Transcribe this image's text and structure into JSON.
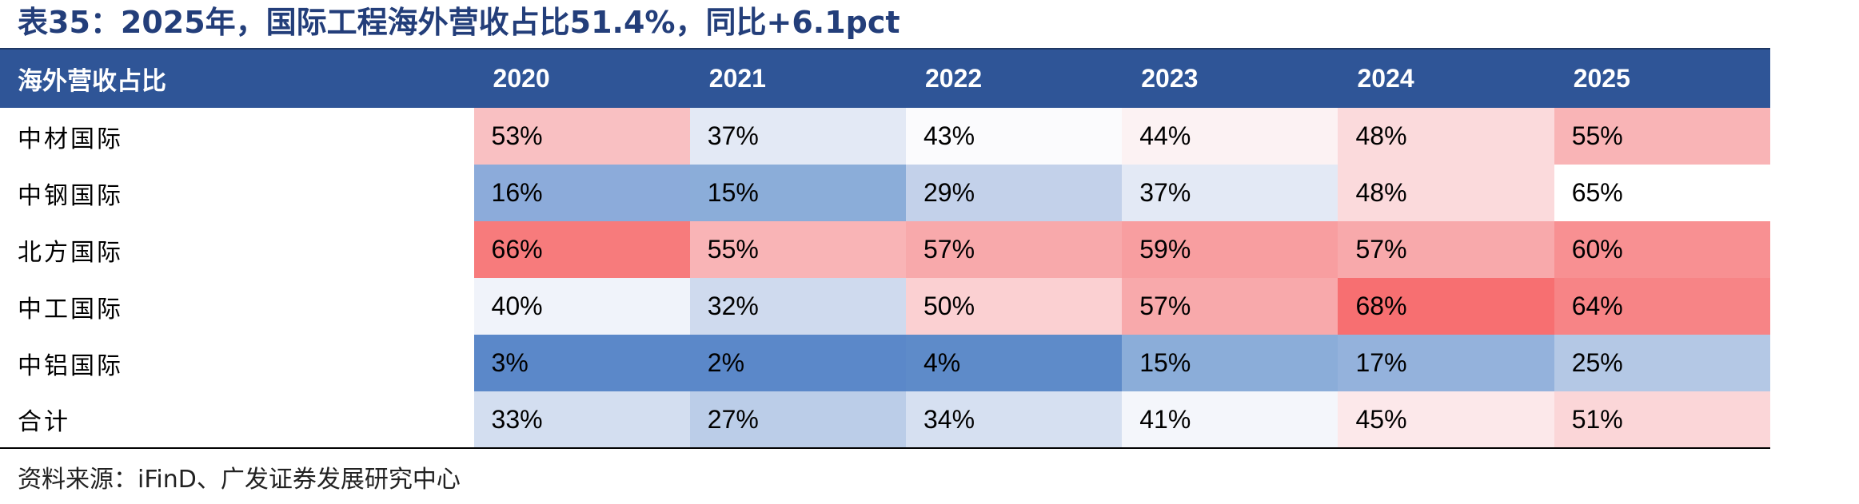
{
  "title": "表35：2025年，国际工程海外营收占比51.4%，同比+6.1pct",
  "table": {
    "header_label": "海外营收占比",
    "years": [
      "2020",
      "2021",
      "2022",
      "2023",
      "2024",
      "2025"
    ],
    "rows": [
      {
        "name": "中材国际",
        "values": [
          "53%",
          "37%",
          "43%",
          "44%",
          "48%",
          "55%"
        ],
        "colors": [
          "#f9c0c2",
          "#e3e9f5",
          "#fbfbfd",
          "#fcf2f3",
          "#fbdadc",
          "#f9b4b6"
        ]
      },
      {
        "name": "中钢国际",
        "values": [
          "16%",
          "15%",
          "29%",
          "37%",
          "48%",
          "65%"
        ],
        "colors": [
          "#8cabda",
          "#8badd9",
          "#c3d1ea",
          "#e3e9f5",
          "#fbdadc",
          "#ffffff"
        ]
      },
      {
        "name": "北方国际",
        "values": [
          "66%",
          "55%",
          "57%",
          "59%",
          "57%",
          "60%"
        ],
        "colors": [
          "#f77b7c",
          "#f9b4b6",
          "#f8a9ab",
          "#f89ea0",
          "#f8a9ab",
          "#f89092"
        ]
      },
      {
        "name": "中工国际",
        "values": [
          "40%",
          "32%",
          "50%",
          "57%",
          "68%",
          "64%"
        ],
        "colors": [
          "#f0f3fa",
          "#cfdaee",
          "#fbd0d2",
          "#f8a9ab",
          "#f76f71",
          "#f78486"
        ]
      },
      {
        "name": "中铝国际",
        "values": [
          "3%",
          "2%",
          "4%",
          "15%",
          "17%",
          "25%"
        ],
        "colors": [
          "#5b88c9",
          "#5b88c9",
          "#5e8bc9",
          "#8badd9",
          "#94b2dc",
          "#b4c8e5"
        ]
      },
      {
        "name": "合计",
        "values": [
          "33%",
          "27%",
          "34%",
          "41%",
          "45%",
          "51%"
        ],
        "colors": [
          "#d3def0",
          "#bbcde8",
          "#d6e0f1",
          "#f4f6fb",
          "#fce8ea",
          "#fbd6d8"
        ]
      }
    ]
  },
  "source": "资料来源：iFinD、广发证券发展研究中心"
}
